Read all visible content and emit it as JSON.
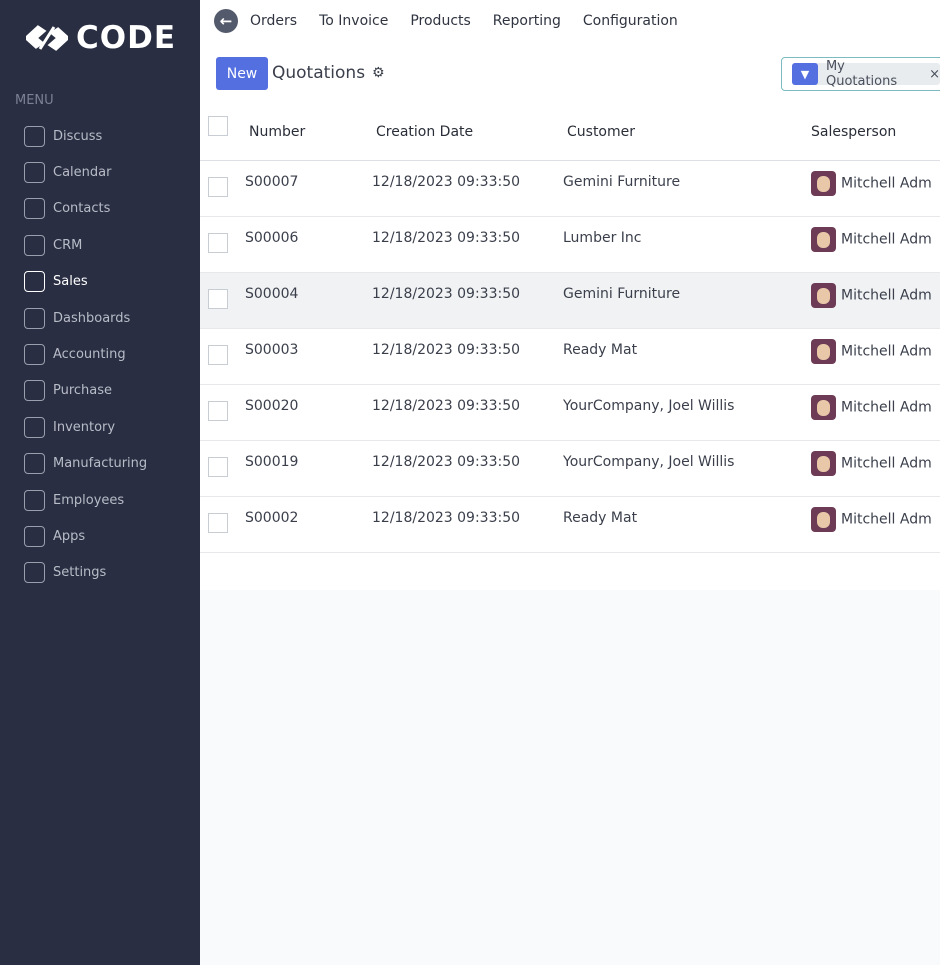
{
  "brand": "CODE",
  "sidebar": {
    "heading": "MENU",
    "items": [
      {
        "label": "Discuss",
        "icon": "chat-icon"
      },
      {
        "label": "Calendar",
        "icon": "calendar-icon"
      },
      {
        "label": "Contacts",
        "icon": "contact-icon"
      },
      {
        "label": "CRM",
        "icon": "handshake-icon"
      },
      {
        "label": "Sales",
        "icon": "bank-icon",
        "active": true
      },
      {
        "label": "Dashboards",
        "icon": "gauge-icon"
      },
      {
        "label": "Accounting",
        "icon": "accounting-icon"
      },
      {
        "label": "Purchase",
        "icon": "card-icon"
      },
      {
        "label": "Inventory",
        "icon": "box-icon"
      },
      {
        "label": "Manufacturing",
        "icon": "wrench-icon"
      },
      {
        "label": "Employees",
        "icon": "people-icon"
      },
      {
        "label": "Apps",
        "icon": "apps-icon"
      },
      {
        "label": "Settings",
        "icon": "gear-icon"
      }
    ]
  },
  "topnav": {
    "items": [
      "Orders",
      "To Invoice",
      "Products",
      "Reporting",
      "Configuration"
    ]
  },
  "toolbar": {
    "new_label": "New",
    "title": "Quotations"
  },
  "search": {
    "facet": "My Quotations"
  },
  "table": {
    "headers": [
      "Number",
      "Creation Date",
      "Customer",
      "Salesperson"
    ],
    "rows": [
      {
        "number": "S00007",
        "date": "12/18/2023 09:33:50",
        "customer": "Gemini Furniture",
        "salesperson": "Mitchell Adm"
      },
      {
        "number": "S00006",
        "date": "12/18/2023 09:33:50",
        "customer": "Lumber Inc",
        "salesperson": "Mitchell Adm"
      },
      {
        "number": "S00004",
        "date": "12/18/2023 09:33:50",
        "customer": "Gemini Furniture",
        "salesperson": "Mitchell Adm"
      },
      {
        "number": "S00003",
        "date": "12/18/2023 09:33:50",
        "customer": "Ready Mat",
        "salesperson": "Mitchell Adm"
      },
      {
        "number": "S00020",
        "date": "12/18/2023 09:33:50",
        "customer": "YourCompany, Joel Willis",
        "salesperson": "Mitchell Adm"
      },
      {
        "number": "S00019",
        "date": "12/18/2023 09:33:50",
        "customer": "YourCompany, Joel Willis",
        "salesperson": "Mitchell Adm"
      },
      {
        "number": "S00002",
        "date": "12/18/2023 09:33:50",
        "customer": "Ready Mat",
        "salesperson": "Mitchell Adm"
      }
    ]
  }
}
